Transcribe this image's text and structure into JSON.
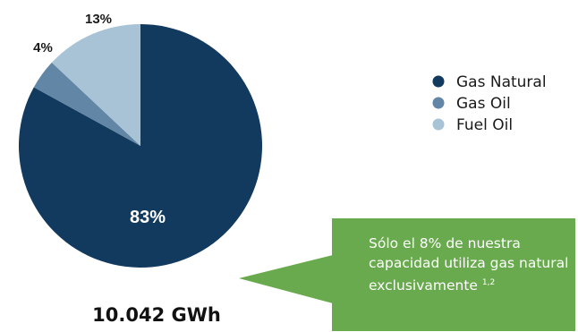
{
  "chart_data": {
    "type": "pie",
    "start": "top-clockwise",
    "slices": [
      {
        "name": "Gas Natural",
        "value": 83,
        "label": "83%",
        "color": "#123a5e"
      },
      {
        "name": "Gas Oil",
        "value": 4,
        "label": "4%",
        "color": "#6287a6"
      },
      {
        "name": "Fuel Oil",
        "value": 13,
        "label": "13%",
        "color": "#a8c3d6"
      }
    ],
    "legend": [
      "Gas Natural",
      "Gas Oil",
      "Fuel Oil"
    ],
    "legend_position": "right"
  },
  "total_label": "10.042 GWh",
  "callout": {
    "text": "Sólo el 8% de nuestra capacidad utiliza gas natural exclusivamente",
    "footnote": "1,2",
    "color": "#6aaa4e"
  }
}
